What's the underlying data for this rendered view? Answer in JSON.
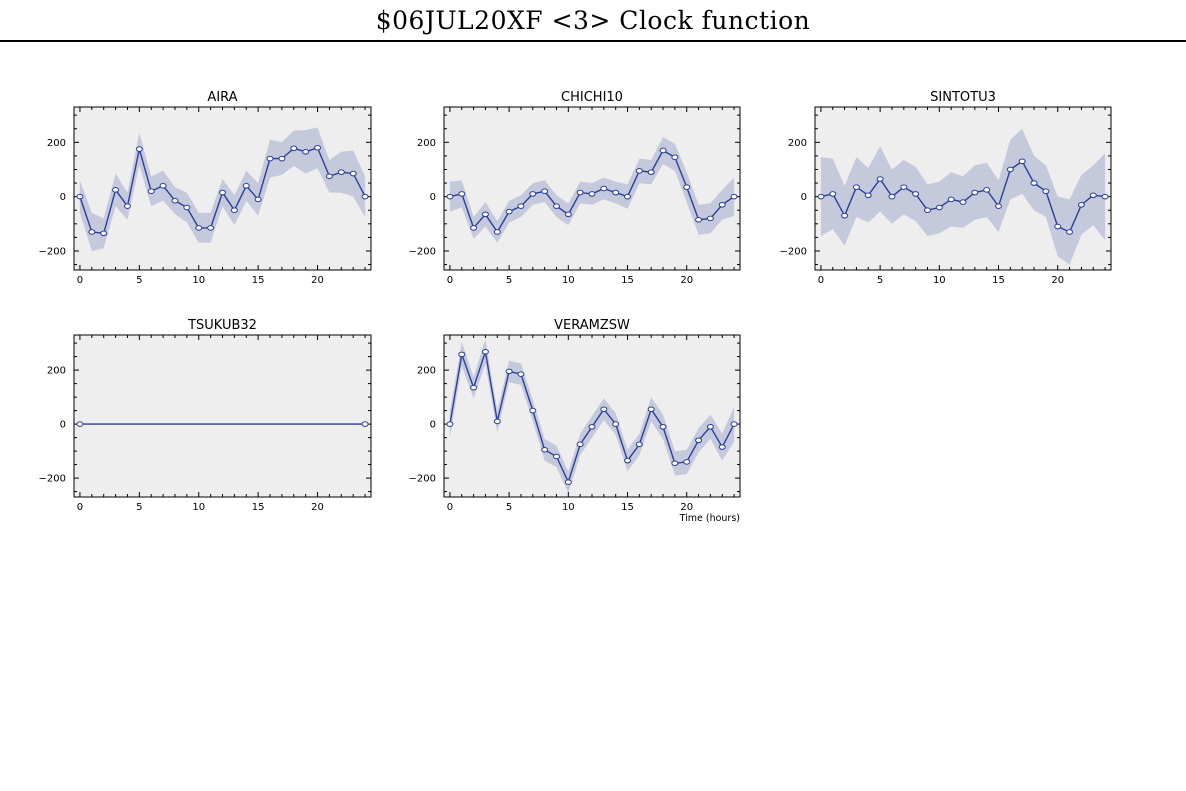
{
  "title": "$06JUL20XF <3>  Clock function",
  "colors": {
    "plot_bg": "#eeeeee",
    "band": "#c5c9dc",
    "line": "#2a3f9a",
    "marker_fill": "#ffffff",
    "axis": "#000000"
  },
  "chart_data": [
    {
      "type": "line",
      "title": "AIRA",
      "xlim": [
        -0.5,
        24.5
      ],
      "ylim": [
        -270,
        330
      ],
      "xticks": [
        0,
        5,
        10,
        15,
        20
      ],
      "yticks": [
        -200,
        0,
        200
      ],
      "xlabel": "",
      "x": [
        0,
        1,
        2,
        3,
        4,
        5,
        6,
        7,
        8,
        9,
        10,
        11,
        12,
        13,
        14,
        15,
        16,
        17,
        18,
        19,
        20,
        21,
        22,
        23,
        24
      ],
      "y": [
        0,
        -130,
        -135,
        25,
        -35,
        175,
        20,
        40,
        -15,
        -40,
        -115,
        -115,
        15,
        -50,
        40,
        -10,
        140,
        140,
        178,
        165,
        180,
        75,
        90,
        85,
        0
      ],
      "band": [
        60,
        70,
        55,
        60,
        50,
        60,
        55,
        55,
        50,
        55,
        55,
        55,
        50,
        55,
        55,
        60,
        70,
        60,
        65,
        80,
        75,
        60,
        75,
        85,
        75
      ]
    },
    {
      "type": "line",
      "title": "CHICHI10",
      "xlim": [
        -0.5,
        24.5
      ],
      "ylim": [
        -270,
        330
      ],
      "xticks": [
        0,
        5,
        10,
        15,
        20
      ],
      "yticks": [
        -200,
        0,
        200
      ],
      "xlabel": "",
      "x": [
        0,
        1,
        2,
        3,
        4,
        5,
        6,
        7,
        8,
        9,
        10,
        11,
        12,
        13,
        14,
        15,
        16,
        17,
        18,
        19,
        20,
        21,
        22,
        23,
        24
      ],
      "y": [
        0,
        10,
        -115,
        -65,
        -130,
        -55,
        -35,
        10,
        20,
        -35,
        -65,
        15,
        10,
        30,
        15,
        0,
        95,
        90,
        170,
        145,
        35,
        -85,
        -80,
        -30,
        0
      ],
      "band": [
        55,
        50,
        40,
        45,
        40,
        40,
        40,
        40,
        40,
        40,
        40,
        40,
        40,
        40,
        40,
        45,
        45,
        45,
        50,
        50,
        55,
        55,
        55,
        55,
        70
      ]
    },
    {
      "type": "line",
      "title": "SINTOTU3",
      "xlim": [
        -0.5,
        24.5
      ],
      "ylim": [
        -270,
        330
      ],
      "xticks": [
        0,
        5,
        10,
        15,
        20
      ],
      "yticks": [
        -200,
        0,
        200
      ],
      "xlabel": "",
      "x": [
        0,
        1,
        2,
        3,
        4,
        5,
        6,
        7,
        8,
        9,
        10,
        11,
        12,
        13,
        14,
        15,
        16,
        17,
        18,
        19,
        20,
        21,
        22,
        23,
        24
      ],
      "y": [
        0,
        10,
        -70,
        35,
        5,
        65,
        0,
        35,
        10,
        -50,
        -40,
        -10,
        -20,
        15,
        25,
        -35,
        100,
        130,
        50,
        20,
        -110,
        -130,
        -30,
        5,
        0
      ],
      "band": [
        145,
        130,
        110,
        110,
        100,
        120,
        100,
        100,
        100,
        95,
        95,
        100,
        95,
        100,
        100,
        95,
        110,
        120,
        100,
        95,
        110,
        120,
        110,
        110,
        160
      ]
    },
    {
      "type": "line",
      "title": "TSUKUB32",
      "xlim": [
        -0.5,
        24.5
      ],
      "ylim": [
        -270,
        330
      ],
      "xticks": [
        0,
        5,
        10,
        15,
        20
      ],
      "yticks": [
        -200,
        0,
        200
      ],
      "xlabel": "",
      "x": [
        0,
        24
      ],
      "y": [
        0,
        0
      ],
      "band": [
        0,
        0
      ]
    },
    {
      "type": "line",
      "title": "VERAMZSW",
      "xlim": [
        -0.5,
        24.5
      ],
      "ylim": [
        -270,
        330
      ],
      "xticks": [
        0,
        5,
        10,
        15,
        20
      ],
      "yticks": [
        -200,
        0,
        200
      ],
      "xlabel": "Time (hours)",
      "x": [
        0,
        1,
        2,
        3,
        4,
        5,
        6,
        7,
        8,
        9,
        10,
        11,
        12,
        13,
        14,
        15,
        16,
        17,
        18,
        19,
        20,
        21,
        22,
        23,
        24
      ],
      "y": [
        0,
        258,
        135,
        268,
        10,
        195,
        185,
        50,
        -95,
        -120,
        -215,
        -75,
        -10,
        55,
        0,
        -135,
        -75,
        55,
        -10,
        -145,
        -140,
        -60,
        -10,
        -85,
        0
      ],
      "band": [
        50,
        45,
        40,
        45,
        40,
        40,
        40,
        40,
        40,
        40,
        40,
        40,
        40,
        40,
        40,
        40,
        40,
        45,
        45,
        45,
        45,
        45,
        45,
        50,
        65
      ]
    }
  ]
}
